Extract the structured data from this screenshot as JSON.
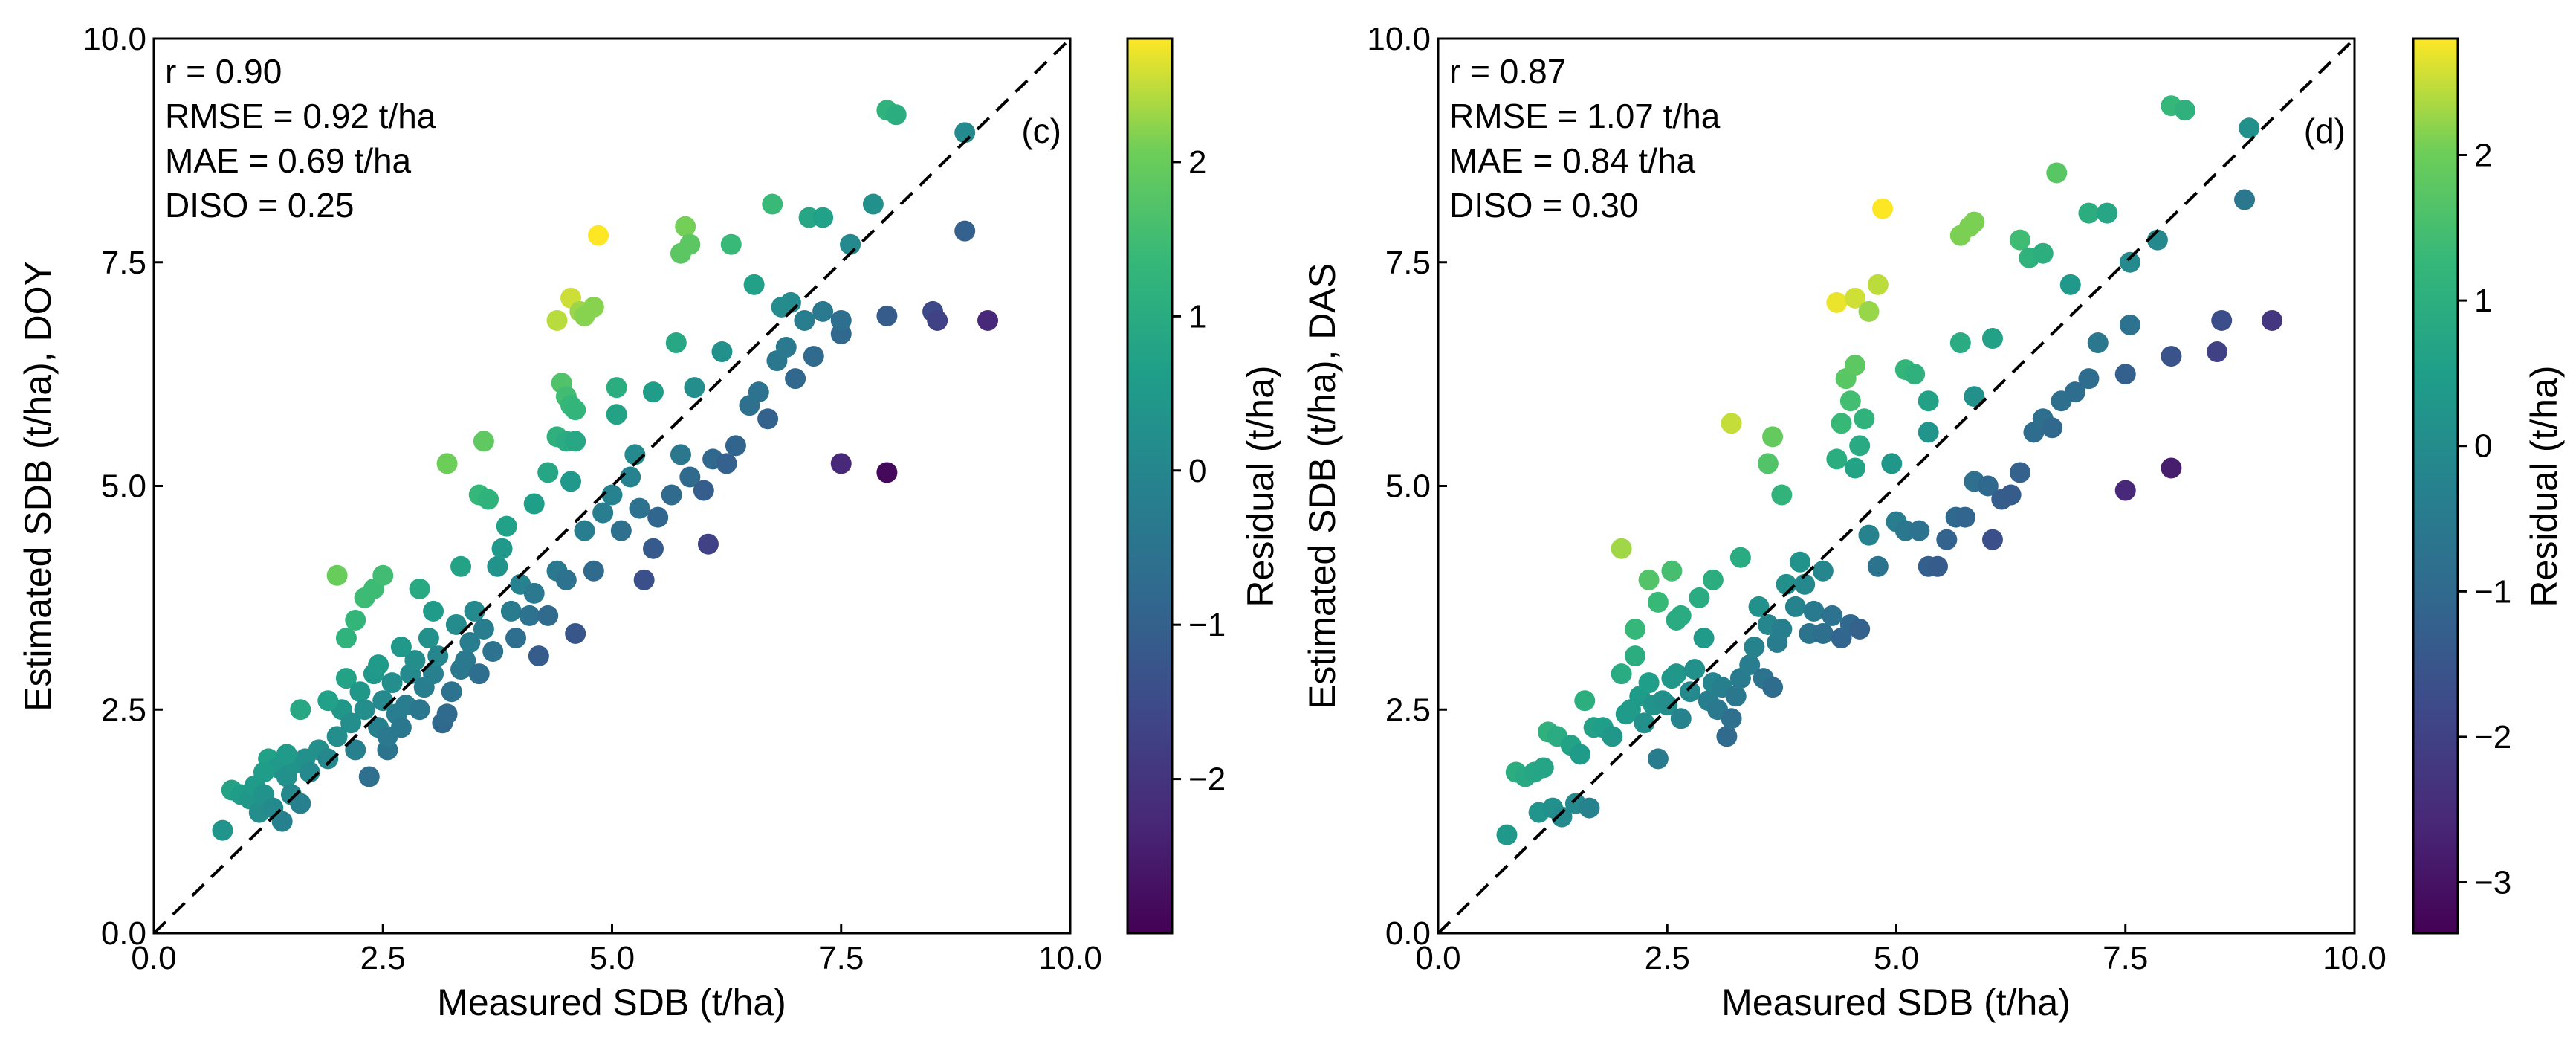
{
  "chart_data": [
    {
      "type": "scatter",
      "panel_label": "(c)",
      "xlabel": "Measured SDB (t/ha)",
      "ylabel": "Estimated SDB (t/ha), DOY",
      "xlim": [
        0,
        10
      ],
      "ylim": [
        0,
        10
      ],
      "x_ticks": [
        0,
        2.5,
        5,
        7.5,
        10
      ],
      "y_ticks": [
        0,
        2.5,
        5,
        7.5,
        10
      ],
      "x_tick_labels": [
        "0.0",
        "2.5",
        "5.0",
        "7.5",
        "10.0"
      ],
      "y_tick_labels": [
        "0.0",
        "2.5",
        "5.0",
        "7.5",
        "10.0"
      ],
      "stats": [
        "r = 0.90",
        "RMSE = 0.92 t/ha",
        "MAE = 0.69 t/ha",
        "DISO = 0.25"
      ],
      "reference_line": "1:1",
      "colorbar": {
        "label": "Residual (t/ha)",
        "min": -3.0,
        "max": 2.8,
        "ticks": [
          -2,
          -1,
          0,
          1,
          2
        ],
        "tick_labels": [
          "−2",
          "−1",
          "0",
          "1",
          "2"
        ],
        "colormap": "viridis"
      },
      "points": [
        [
          0.75,
          1.15
        ],
        [
          0.85,
          1.6
        ],
        [
          0.95,
          1.55
        ],
        [
          1.05,
          1.5
        ],
        [
          1.1,
          1.65
        ],
        [
          1.15,
          1.35
        ],
        [
          1.2,
          1.55
        ],
        [
          1.25,
          1.95
        ],
        [
          1.3,
          1.4
        ],
        [
          1.35,
          1.85
        ],
        [
          1.4,
          1.25
        ],
        [
          1.45,
          1.75
        ],
        [
          1.5,
          1.55
        ],
        [
          1.55,
          1.9
        ],
        [
          1.6,
          1.45
        ],
        [
          1.65,
          1.95
        ],
        [
          1.6,
          2.5
        ],
        [
          1.7,
          1.8
        ],
        [
          1.8,
          2.05
        ],
        [
          1.9,
          1.95
        ],
        [
          2.0,
          2.2
        ],
        [
          2.05,
          2.5
        ],
        [
          2.1,
          2.85
        ],
        [
          2.15,
          2.35
        ],
        [
          2.2,
          2.05
        ],
        [
          2.25,
          2.7
        ],
        [
          2.3,
          2.5
        ],
        [
          2.35,
          1.75
        ],
        [
          2.4,
          2.9
        ],
        [
          2.45,
          2.3
        ],
        [
          2.5,
          2.6
        ],
        [
          2.55,
          2.05
        ],
        [
          2.6,
          2.8
        ],
        [
          2.65,
          2.45
        ],
        [
          2.7,
          2.3
        ],
        [
          2.75,
          2.55
        ],
        [
          2.8,
          2.9
        ],
        [
          2.85,
          3.05
        ],
        [
          2.9,
          2.5
        ],
        [
          2.95,
          2.75
        ],
        [
          3.0,
          3.3
        ],
        [
          3.05,
          2.9
        ],
        [
          3.1,
          3.1
        ],
        [
          3.15,
          2.35
        ],
        [
          3.2,
          2.45
        ],
        [
          3.25,
          2.7
        ],
        [
          3.3,
          3.45
        ],
        [
          3.35,
          2.95
        ],
        [
          3.4,
          3.05
        ],
        [
          3.45,
          3.25
        ],
        [
          3.5,
          3.6
        ],
        [
          3.55,
          2.9
        ],
        [
          3.6,
          3.4
        ],
        [
          3.7,
          3.15
        ],
        [
          3.75,
          4.1
        ],
        [
          3.8,
          4.3
        ],
        [
          3.9,
          3.6
        ],
        [
          4.0,
          3.9
        ],
        [
          4.1,
          3.55
        ],
        [
          4.15,
          3.8
        ],
        [
          4.2,
          3.1
        ],
        [
          4.3,
          3.55
        ],
        [
          4.4,
          4.05
        ],
        [
          4.5,
          3.95
        ],
        [
          4.6,
          3.35
        ],
        [
          4.7,
          4.5
        ],
        [
          4.8,
          4.05
        ],
        [
          4.9,
          4.7
        ],
        [
          5.0,
          4.9
        ],
        [
          5.1,
          4.5
        ],
        [
          5.2,
          5.1
        ],
        [
          5.3,
          4.75
        ],
        [
          5.35,
          3.95
        ],
        [
          5.45,
          4.3
        ],
        [
          5.5,
          4.65
        ],
        [
          5.65,
          4.9
        ],
        [
          5.75,
          5.35
        ],
        [
          5.85,
          5.1
        ],
        [
          6.0,
          4.95
        ],
        [
          6.05,
          4.35
        ],
        [
          6.1,
          5.3
        ],
        [
          6.25,
          5.25
        ],
        [
          6.35,
          5.45
        ],
        [
          6.5,
          5.9
        ],
        [
          6.6,
          6.05
        ],
        [
          6.7,
          5.75
        ],
        [
          6.8,
          6.4
        ],
        [
          6.9,
          6.55
        ],
        [
          7.0,
          6.2
        ],
        [
          7.1,
          6.85
        ],
        [
          7.2,
          6.45
        ],
        [
          7.3,
          6.95
        ],
        [
          7.5,
          6.7
        ],
        [
          7.5,
          6.85
        ],
        [
          8.0,
          6.9
        ],
        [
          8.5,
          6.95
        ],
        [
          8.55,
          6.85
        ],
        [
          9.1,
          6.85
        ],
        [
          7.5,
          5.25
        ],
        [
          8.0,
          5.15
        ],
        [
          2.0,
          4.0
        ],
        [
          2.3,
          3.75
        ],
        [
          2.4,
          3.85
        ],
        [
          2.5,
          4.0
        ],
        [
          3.2,
          5.25
        ],
        [
          3.55,
          4.9
        ],
        [
          3.6,
          5.5
        ],
        [
          3.65,
          4.85
        ],
        [
          4.4,
          6.85
        ],
        [
          4.55,
          7.1
        ],
        [
          4.65,
          6.95
        ],
        [
          4.7,
          6.9
        ],
        [
          4.8,
          7.0
        ],
        [
          4.85,
          7.8
        ],
        [
          4.45,
          6.15
        ],
        [
          4.5,
          6.0
        ],
        [
          4.55,
          5.9
        ],
        [
          4.4,
          5.55
        ],
        [
          4.5,
          5.5
        ],
        [
          4.6,
          5.5
        ],
        [
          5.75,
          7.6
        ],
        [
          5.8,
          7.9
        ],
        [
          5.85,
          7.7
        ],
        [
          6.3,
          7.7
        ],
        [
          6.75,
          8.15
        ],
        [
          7.15,
          8.0
        ],
        [
          7.3,
          8.0
        ],
        [
          8.0,
          9.2
        ],
        [
          8.1,
          9.15
        ],
        [
          8.85,
          8.95
        ],
        [
          2.1,
          3.3
        ],
        [
          2.2,
          3.5
        ],
        [
          2.45,
          3.0
        ],
        [
          2.9,
          3.85
        ],
        [
          3.35,
          4.1
        ],
        [
          3.85,
          4.55
        ],
        [
          4.15,
          4.8
        ],
        [
          4.3,
          5.15
        ],
        [
          4.55,
          5.05
        ],
        [
          4.6,
          5.85
        ],
        [
          5.05,
          6.1
        ],
        [
          5.25,
          5.35
        ],
        [
          5.7,
          6.6
        ],
        [
          6.2,
          6.5
        ],
        [
          6.55,
          7.25
        ],
        [
          6.95,
          7.05
        ],
        [
          7.6,
          7.7
        ],
        [
          7.85,
          8.15
        ],
        [
          2.55,
          2.2
        ],
        [
          3.95,
          3.3
        ],
        [
          8.85,
          7.85
        ],
        [
          6.85,
          7.0
        ],
        [
          5.9,
          6.1
        ],
        [
          5.45,
          6.05
        ],
        [
          5.05,
          5.8
        ],
        [
          3.05,
          3.6
        ],
        [
          2.7,
          3.2
        ],
        [
          1.9,
          2.6
        ],
        [
          1.45,
          2.0
        ],
        [
          1.2,
          1.8
        ]
      ]
    },
    {
      "type": "scatter",
      "panel_label": "(d)",
      "xlabel": "Measured SDB (t/ha)",
      "ylabel": "Estimated SDB (t/ha), DAS",
      "xlim": [
        0,
        10
      ],
      "ylim": [
        0,
        10
      ],
      "x_ticks": [
        0,
        2.5,
        5,
        7.5,
        10
      ],
      "y_ticks": [
        0,
        2.5,
        5,
        7.5,
        10
      ],
      "x_tick_labels": [
        "0.0",
        "2.5",
        "5.0",
        "7.5",
        "10.0"
      ],
      "y_tick_labels": [
        "0.0",
        "2.5",
        "5.0",
        "7.5",
        "10.0"
      ],
      "stats": [
        "r = 0.87",
        "RMSE = 1.07 t/ha",
        "MAE = 0.84 t/ha",
        "DISO = 0.30"
      ],
      "reference_line": "1:1",
      "colorbar": {
        "label": "Residual (t/ha)",
        "min": -3.35,
        "max": 2.8,
        "ticks": [
          -3,
          -2,
          -1,
          0,
          1,
          2
        ],
        "tick_labels": [
          "−3",
          "−2",
          "−1",
          "0",
          "1",
          "2"
        ],
        "colormap": "viridis"
      },
      "points": [
        [
          0.75,
          1.1
        ],
        [
          0.85,
          1.8
        ],
        [
          0.95,
          1.75
        ],
        [
          1.05,
          1.8
        ],
        [
          1.1,
          1.35
        ],
        [
          1.15,
          1.85
        ],
        [
          1.2,
          2.25
        ],
        [
          1.25,
          1.4
        ],
        [
          1.3,
          2.2
        ],
        [
          1.35,
          1.3
        ],
        [
          1.45,
          2.1
        ],
        [
          1.5,
          1.45
        ],
        [
          1.55,
          2.0
        ],
        [
          1.6,
          2.6
        ],
        [
          1.65,
          1.4
        ],
        [
          1.7,
          2.3
        ],
        [
          1.8,
          2.3
        ],
        [
          1.9,
          2.2
        ],
        [
          2.0,
          2.9
        ],
        [
          2.05,
          2.45
        ],
        [
          2.1,
          2.5
        ],
        [
          2.15,
          3.1
        ],
        [
          2.2,
          2.65
        ],
        [
          2.25,
          2.35
        ],
        [
          2.3,
          2.8
        ],
        [
          2.35,
          2.55
        ],
        [
          2.4,
          1.95
        ],
        [
          2.45,
          2.6
        ],
        [
          2.5,
          2.55
        ],
        [
          2.55,
          2.85
        ],
        [
          2.6,
          2.9
        ],
        [
          2.65,
          2.4
        ],
        [
          2.75,
          2.7
        ],
        [
          2.8,
          2.95
        ],
        [
          2.9,
          3.3
        ],
        [
          2.95,
          2.6
        ],
        [
          3.0,
          2.8
        ],
        [
          3.05,
          2.5
        ],
        [
          3.1,
          2.75
        ],
        [
          3.15,
          2.2
        ],
        [
          3.2,
          2.4
        ],
        [
          3.25,
          2.65
        ],
        [
          3.3,
          2.85
        ],
        [
          3.4,
          3.0
        ],
        [
          3.45,
          3.2
        ],
        [
          3.55,
          2.85
        ],
        [
          3.6,
          3.45
        ],
        [
          3.65,
          2.75
        ],
        [
          3.7,
          3.25
        ],
        [
          3.75,
          3.4
        ],
        [
          3.8,
          3.9
        ],
        [
          3.9,
          3.65
        ],
        [
          4.0,
          3.9
        ],
        [
          4.05,
          3.35
        ],
        [
          4.1,
          3.6
        ],
        [
          4.2,
          3.35
        ],
        [
          4.3,
          3.55
        ],
        [
          4.4,
          3.3
        ],
        [
          4.5,
          3.45
        ],
        [
          4.6,
          3.4
        ],
        [
          4.7,
          4.45
        ],
        [
          4.8,
          4.1
        ],
        [
          5.0,
          4.6
        ],
        [
          5.1,
          4.5
        ],
        [
          5.25,
          4.5
        ],
        [
          5.35,
          4.1
        ],
        [
          5.45,
          4.1
        ],
        [
          5.55,
          4.4
        ],
        [
          5.65,
          4.65
        ],
        [
          5.75,
          4.65
        ],
        [
          5.85,
          5.05
        ],
        [
          6.0,
          5.0
        ],
        [
          6.05,
          4.4
        ],
        [
          6.15,
          4.85
        ],
        [
          6.25,
          4.9
        ],
        [
          6.35,
          5.15
        ],
        [
          6.5,
          5.6
        ],
        [
          6.6,
          5.75
        ],
        [
          6.7,
          5.65
        ],
        [
          6.8,
          5.95
        ],
        [
          6.95,
          6.05
        ],
        [
          7.1,
          6.2
        ],
        [
          7.2,
          6.6
        ],
        [
          7.5,
          6.25
        ],
        [
          7.55,
          6.8
        ],
        [
          8.0,
          6.45
        ],
        [
          8.5,
          6.5
        ],
        [
          8.55,
          6.85
        ],
        [
          9.1,
          6.85
        ],
        [
          7.5,
          4.95
        ],
        [
          8.0,
          5.2
        ],
        [
          2.0,
          4.3
        ],
        [
          2.3,
          3.95
        ],
        [
          2.4,
          3.7
        ],
        [
          2.55,
          4.05
        ],
        [
          2.65,
          3.55
        ],
        [
          3.2,
          5.7
        ],
        [
          3.65,
          5.55
        ],
        [
          3.6,
          5.25
        ],
        [
          3.75,
          4.9
        ],
        [
          4.35,
          7.05
        ],
        [
          4.55,
          7.1
        ],
        [
          4.7,
          6.95
        ],
        [
          4.8,
          7.25
        ],
        [
          4.85,
          8.1
        ],
        [
          4.45,
          6.2
        ],
        [
          4.55,
          6.35
        ],
        [
          4.5,
          5.95
        ],
        [
          4.4,
          5.7
        ],
        [
          4.6,
          5.45
        ],
        [
          4.55,
          5.2
        ],
        [
          5.7,
          7.8
        ],
        [
          5.8,
          7.9
        ],
        [
          5.85,
          7.95
        ],
        [
          6.35,
          7.75
        ],
        [
          6.75,
          8.5
        ],
        [
          7.1,
          8.05
        ],
        [
          7.3,
          8.05
        ],
        [
          8.0,
          9.25
        ],
        [
          8.15,
          9.2
        ],
        [
          8.85,
          9.0
        ],
        [
          5.1,
          6.3
        ],
        [
          5.2,
          6.25
        ],
        [
          5.35,
          5.95
        ],
        [
          5.7,
          6.6
        ],
        [
          6.05,
          6.65
        ],
        [
          6.45,
          7.55
        ],
        [
          6.6,
          7.6
        ],
        [
          6.9,
          7.25
        ],
        [
          7.55,
          7.5
        ],
        [
          7.85,
          7.75
        ],
        [
          2.15,
          3.4
        ],
        [
          2.6,
          3.5
        ],
        [
          2.85,
          3.75
        ],
        [
          3.0,
          3.95
        ],
        [
          3.3,
          4.2
        ],
        [
          3.5,
          3.65
        ],
        [
          3.95,
          4.15
        ],
        [
          4.2,
          4.05
        ],
        [
          4.35,
          5.3
        ],
        [
          4.65,
          5.75
        ],
        [
          4.95,
          5.25
        ],
        [
          8.8,
          8.2
        ],
        [
          5.85,
          6.0
        ],
        [
          5.35,
          5.6
        ]
      ]
    }
  ]
}
